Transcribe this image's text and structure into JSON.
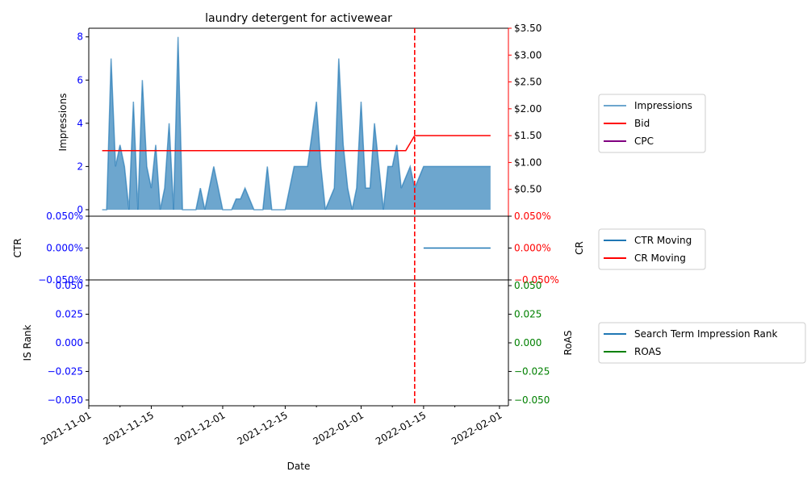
{
  "colors": {
    "impressions": "#1f77b4",
    "bid": "#ff0000",
    "cpc": "#800080",
    "ctr": "#1f77b4",
    "cr": "#ff0000",
    "rank": "#1f77b4",
    "roas": "#008000",
    "left_axis": "#0000ff",
    "right_axis_top": "#ff0000",
    "right_axis_bottom": "#008000",
    "vline": "#ff0000"
  },
  "chart_data": {
    "type": "line",
    "title": "laundry detergent for activewear",
    "xlabel": "Date",
    "x_ticks": [
      "2021-11-01",
      "2021-11-15",
      "2021-12-01",
      "2021-12-15",
      "2022-01-01",
      "2022-01-15",
      "2022-02-01"
    ],
    "x_range": [
      "2021-11-01",
      "2022-02-03"
    ],
    "vline_date": "2022-01-13",
    "panels": {
      "top": {
        "ylabel_left": "Impressions",
        "ylim_left": [
          -0.3,
          8.4
        ],
        "yticks_left": [
          "0",
          "2",
          "4",
          "6",
          "8"
        ],
        "ylim_right": [
          0,
          3.5
        ],
        "yticks_right": [
          "$0.50",
          "$1.00",
          "$1.50",
          "$2.00",
          "$2.50",
          "$3.00",
          "$3.50"
        ],
        "legend": [
          "Impressions",
          "Bid",
          "CPC"
        ],
        "series": {
          "impressions": {
            "name": "Impressions",
            "x": [
              "2021-11-04",
              "2021-11-05",
              "2021-11-06",
              "2021-11-07",
              "2021-11-08",
              "2021-11-09",
              "2021-11-10",
              "2021-11-11",
              "2021-11-12",
              "2021-11-13",
              "2021-11-14",
              "2021-11-15",
              "2021-11-16",
              "2021-11-17",
              "2021-11-18",
              "2021-11-19",
              "2021-11-20",
              "2021-11-21",
              "2021-11-22",
              "2021-11-23",
              "2021-11-24",
              "2021-11-25",
              "2021-11-26",
              "2021-11-27",
              "2021-11-28",
              "2021-11-29",
              "2021-11-30",
              "2021-12-01",
              "2021-12-02",
              "2021-12-03",
              "2021-12-04",
              "2021-12-05",
              "2021-12-06",
              "2021-12-07",
              "2021-12-08",
              "2021-12-09",
              "2021-12-10",
              "2021-12-11",
              "2021-12-12",
              "2021-12-13",
              "2021-12-14",
              "2021-12-15",
              "2021-12-16",
              "2021-12-17",
              "2021-12-18",
              "2021-12-19",
              "2021-12-20",
              "2021-12-21",
              "2021-12-22",
              "2021-12-23",
              "2021-12-24",
              "2021-12-25",
              "2021-12-26",
              "2021-12-27",
              "2021-12-28",
              "2021-12-29",
              "2021-12-30",
              "2021-12-31",
              "2022-01-01",
              "2022-01-02",
              "2022-01-03",
              "2022-01-04",
              "2022-01-05",
              "2022-01-06",
              "2022-01-07",
              "2022-01-08",
              "2022-01-09",
              "2022-01-10",
              "2022-01-11",
              "2022-01-12",
              "2022-01-13",
              "2022-01-14",
              "2022-01-15",
              "2022-01-16",
              "2022-01-17",
              "2022-01-18",
              "2022-01-19",
              "2022-01-20",
              "2022-01-21",
              "2022-01-22",
              "2022-01-23",
              "2022-01-24",
              "2022-01-25",
              "2022-01-26",
              "2022-01-27",
              "2022-01-28",
              "2022-01-29",
              "2022-01-30"
            ],
            "values": [
              0,
              0,
              7,
              2,
              3,
              2,
              0,
              5,
              0,
              6,
              2,
              1,
              3,
              0,
              1,
              4,
              0,
              8,
              0,
              0,
              0,
              0,
              1,
              0,
              1,
              2,
              1,
              0,
              0,
              0,
              0.5,
              0.5,
              1,
              0.5,
              0,
              0,
              0,
              2,
              0,
              0,
              0,
              0,
              1,
              2,
              2,
              2,
              2,
              3.5,
              5,
              2,
              0,
              0.5,
              1,
              7,
              3,
              1,
              0,
              1,
              5,
              1,
              1,
              4,
              2,
              0,
              2,
              2,
              3,
              1,
              1.5,
              2,
              1,
              1.5,
              2,
              2,
              2,
              2,
              2,
              2,
              2,
              2,
              2,
              2,
              2,
              2,
              2,
              2,
              2,
              2
            ]
          },
          "bid": {
            "name": "Bid",
            "x": [
              "2021-11-04",
              "2022-01-11",
              "2022-01-13",
              "2022-01-30"
            ],
            "values": [
              1.22,
              1.22,
              1.5,
              1.5
            ]
          },
          "cpc": {
            "name": "CPC",
            "x": [],
            "values": []
          }
        }
      },
      "middle": {
        "ylabel_left": "CTR",
        "ylabel_right": "CR",
        "ylim": [
          -0.05,
          0.05
        ],
        "yticks_left": [
          "−0.050%",
          "0.000%",
          "0.050%"
        ],
        "yticks_right": [
          "−0.050%",
          "0.000%",
          "0.050%"
        ],
        "legend": [
          "CTR Moving",
          "CR Moving"
        ],
        "series": {
          "ctr": {
            "name": "CTR Moving",
            "x": [
              "2022-01-15",
              "2022-01-30"
            ],
            "values": [
              0,
              0
            ]
          },
          "cr": {
            "name": "CR Moving",
            "x": [],
            "values": []
          }
        }
      },
      "bottom": {
        "ylabel_left": "IS Rank",
        "ylabel_right": "RoAS",
        "ylim": [
          -0.055,
          0.055
        ],
        "yticks_left": [
          "−0.050",
          "−0.025",
          "0.000",
          "0.025",
          "0.050"
        ],
        "yticks_right": [
          "−0.050",
          "−0.025",
          "0.000",
          "0.025",
          "0.050"
        ],
        "legend": [
          "Search Term Impression Rank",
          "ROAS"
        ],
        "series": {
          "rank": {
            "name": "Search Term Impression Rank",
            "x": [],
            "values": []
          },
          "roas": {
            "name": "ROAS",
            "x": [],
            "values": []
          }
        }
      }
    }
  }
}
